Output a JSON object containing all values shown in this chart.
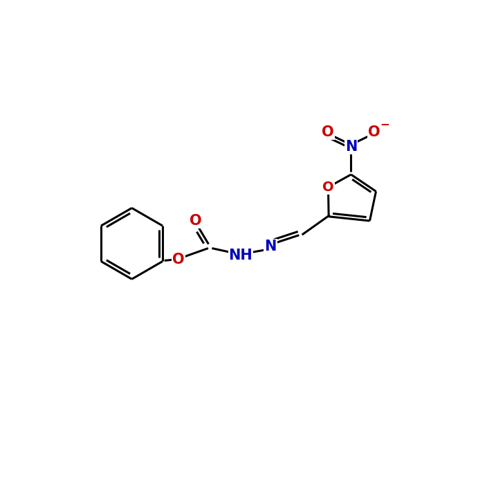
{
  "bg_color": "#ffffff",
  "bond_color": "#000000",
  "n_color": "#0000bb",
  "o_color": "#cc0000",
  "line_width": 2.2,
  "figsize": [
    7.04,
    7.02
  ],
  "dpi": 100,
  "xlim": [
    0,
    10
  ],
  "ylim": [
    0,
    10
  ]
}
